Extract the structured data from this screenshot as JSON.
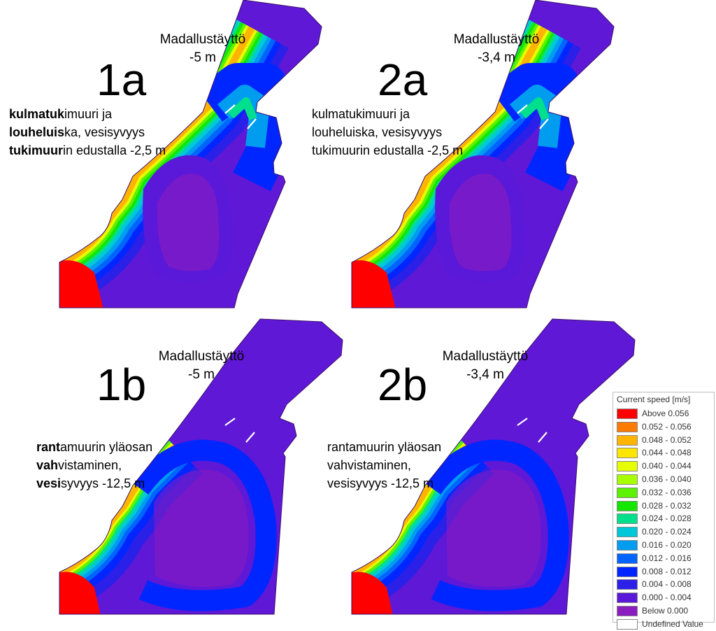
{
  "panels": [
    {
      "id": "1a",
      "label": "1a",
      "caption_line1": "Madallustäyttö",
      "caption_line2": "-5 m",
      "desc": [
        {
          "bold": "kulmatuk",
          "rest": "imuuri ja"
        },
        {
          "bold": "louheluis",
          "rest": "ka, vesisyvyys"
        },
        {
          "bold": "tukimuur",
          "rest": "in edustalla -2,5 m"
        }
      ],
      "scenario": "a"
    },
    {
      "id": "2a",
      "label": "2a",
      "caption_line1": "Madallustäyttö",
      "caption_line2": "-3,4 m",
      "desc": [
        {
          "bold": "",
          "rest": "kulmatukimuuri ja"
        },
        {
          "bold": "",
          "rest": "louheluiska, vesisyvyys"
        },
        {
          "bold": "",
          "rest": "tukimuurin edustalla -2,5 m"
        }
      ],
      "scenario": "a"
    },
    {
      "id": "1b",
      "label": "1b",
      "caption_line1": "Madallustäyttö",
      "caption_line2": "-5 m",
      "desc": [
        {
          "bold": "rant",
          "rest": "amuurin yläosan"
        },
        {
          "bold": "vah",
          "rest": "vistaminen,"
        },
        {
          "bold": "vesi",
          "rest": "syvyys -12,5 m"
        }
      ],
      "scenario": "b"
    },
    {
      "id": "2b",
      "label": "2b",
      "caption_line1": "Madallustäyttö",
      "caption_line2": "-3,4 m",
      "desc": [
        {
          "bold": "",
          "rest": "rantamuurin yläosan"
        },
        {
          "bold": "",
          "rest": "vahvistaminen,"
        },
        {
          "bold": "",
          "rest": "vesisyvyys -12,5 m"
        }
      ],
      "scenario": "b"
    }
  ],
  "legend": {
    "title": "Current speed [m/s]",
    "items": [
      {
        "label": "Above  0.056",
        "color": "#ff0000"
      },
      {
        "label": "0.052 - 0.056",
        "color": "#ff7a00"
      },
      {
        "label": "0.048 - 0.052",
        "color": "#ffb400"
      },
      {
        "label": "0.044 - 0.048",
        "color": "#ffe600"
      },
      {
        "label": "0.040 - 0.044",
        "color": "#e6ff00"
      },
      {
        "label": "0.036 - 0.040",
        "color": "#a8ff00"
      },
      {
        "label": "0.032 - 0.036",
        "color": "#5cf200"
      },
      {
        "label": "0.028 - 0.032",
        "color": "#14e600"
      },
      {
        "label": "0.024 - 0.028",
        "color": "#00e08c"
      },
      {
        "label": "0.020 - 0.024",
        "color": "#00c8d8"
      },
      {
        "label": "0.016 - 0.020",
        "color": "#009cf0"
      },
      {
        "label": "0.012 - 0.016",
        "color": "#0064ff"
      },
      {
        "label": "0.008 - 0.012",
        "color": "#0026ff"
      },
      {
        "label": "0.004 - 0.008",
        "color": "#2a20e8"
      },
      {
        "label": "0.000 - 0.004",
        "color": "#5a18d8"
      },
      {
        "label": "Below  0.000",
        "color": "#8a1cc0"
      },
      {
        "label": "Undefined Value",
        "color": "#ffffff"
      }
    ]
  }
}
